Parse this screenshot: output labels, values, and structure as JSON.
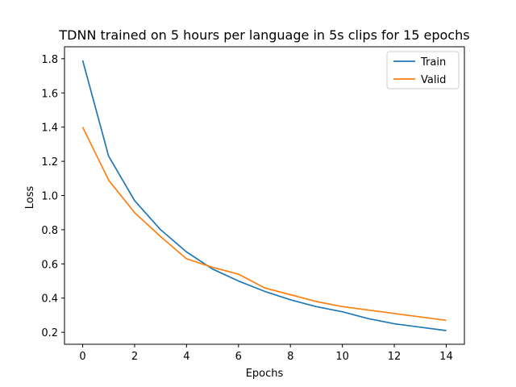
{
  "chart_data": {
    "type": "line",
    "title": "TDNN trained on 5 hours per language in 5s clips for 15 epochs",
    "xlabel": "Epochs",
    "ylabel": "Loss",
    "x": [
      0,
      1,
      2,
      3,
      4,
      5,
      6,
      7,
      8,
      9,
      10,
      11,
      12,
      13,
      14
    ],
    "xlim": [
      -0.7,
      14.7
    ],
    "ylim": [
      0.13,
      1.87
    ],
    "xticks": [
      0,
      2,
      4,
      6,
      8,
      10,
      12,
      14
    ],
    "xtick_labels": [
      "0",
      "2",
      "4",
      "6",
      "8",
      "10",
      "12",
      "14"
    ],
    "yticks": [
      0.2,
      0.4,
      0.6,
      0.8,
      1.0,
      1.2,
      1.4,
      1.6,
      1.8
    ],
    "ytick_labels": [
      "0.2",
      "0.4",
      "0.6",
      "0.8",
      "1.0",
      "1.2",
      "1.4",
      "1.6",
      "1.8"
    ],
    "grid": false,
    "legend_position": "top-right",
    "series": [
      {
        "name": "Train",
        "color": "#1f77b4",
        "values": [
          1.79,
          1.23,
          0.97,
          0.8,
          0.67,
          0.57,
          0.5,
          0.44,
          0.39,
          0.35,
          0.32,
          0.28,
          0.25,
          0.23,
          0.21
        ]
      },
      {
        "name": "Valid",
        "color": "#ff7f0e",
        "values": [
          1.4,
          1.09,
          0.9,
          0.76,
          0.63,
          0.58,
          0.54,
          0.46,
          0.42,
          0.38,
          0.35,
          0.33,
          0.31,
          0.29,
          0.27
        ]
      }
    ]
  }
}
